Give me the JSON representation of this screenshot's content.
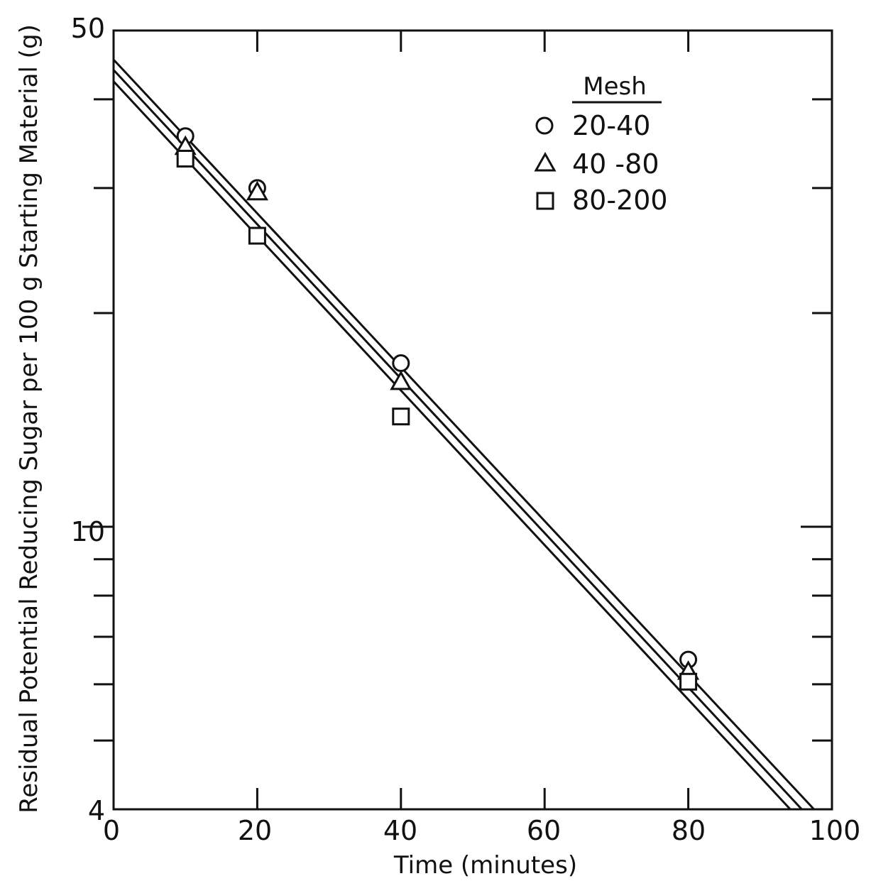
{
  "chart_data": {
    "type": "scatter",
    "title": "",
    "xlabel": "Time (minutes)",
    "ylabel": "Residual Potential Reducing Sugar per 100 g Starting Material (g)",
    "xlim": [
      0,
      100
    ],
    "ylim": [
      4,
      50
    ],
    "y_scale": "log",
    "grid": false,
    "x_ticks": [
      "0",
      "20",
      "40",
      "60",
      "80",
      "100"
    ],
    "y_tick_labels": [
      "50",
      "10",
      "4"
    ],
    "legend": {
      "title": "Mesh",
      "placement": "top-right",
      "entries": [
        {
          "marker": "circle",
          "label": "20-40"
        },
        {
          "marker": "triangle",
          "label": "40 -80"
        },
        {
          "marker": "square",
          "label": "80-200"
        }
      ]
    },
    "series": [
      {
        "name": "20-40",
        "marker": "circle",
        "points": [
          [
            10,
            35.5
          ],
          [
            20,
            30.0
          ],
          [
            40,
            17.0
          ],
          [
            80,
            6.5
          ]
        ],
        "fit_line": {
          "x": [
            0,
            97.5
          ],
          "y": [
            45.5,
            4.0
          ]
        }
      },
      {
        "name": "40 -80",
        "marker": "triangle",
        "points": [
          [
            10,
            34.3
          ],
          [
            20,
            29.6
          ],
          [
            40,
            16.0
          ],
          [
            80,
            6.25
          ]
        ],
        "fit_line": {
          "x": [
            0,
            95.8
          ],
          "y": [
            44.0,
            4.0
          ]
        }
      },
      {
        "name": "80-200",
        "marker": "square",
        "points": [
          [
            10,
            33.0
          ],
          [
            20,
            25.7
          ],
          [
            40,
            14.3
          ],
          [
            80,
            6.05
          ]
        ],
        "fit_line": {
          "x": [
            0,
            94.2
          ],
          "y": [
            42.4,
            4.0
          ]
        }
      }
    ]
  }
}
